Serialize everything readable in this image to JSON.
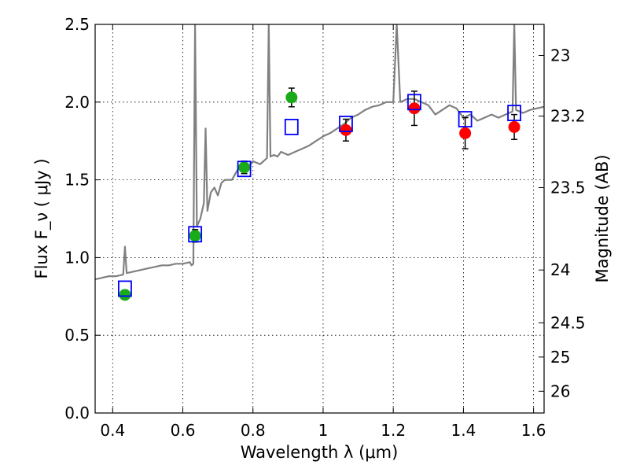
{
  "chart_data": {
    "type": "scatter",
    "title": "",
    "xlabel": "Wavelength  λ (μm)",
    "ylabel": "Flux  F_ν  ( μJy )",
    "ylabel_right": "Magnitude (AB)",
    "xlim": [
      0.35,
      1.63
    ],
    "ylim": [
      0.0,
      2.5
    ],
    "grid": true,
    "x_ticks": [
      0.4,
      0.6,
      0.8,
      1.0,
      1.2,
      1.4,
      1.6
    ],
    "x_tick_labels": [
      "0.4",
      "0.6",
      "0.8",
      "1",
      "1.2",
      "1.4",
      "1.6"
    ],
    "y_ticks": [
      0.0,
      0.5,
      1.0,
      1.5,
      2.0,
      2.5
    ],
    "y_tick_labels": [
      "0.0",
      "0.5",
      "1.0",
      "1.5",
      "2.0",
      "2.5"
    ],
    "right_ticks": [
      {
        "label": "23",
        "flux": 2.3
      },
      {
        "label": "23.2",
        "flux": 1.91
      },
      {
        "label": "23.5",
        "flux": 1.45
      },
      {
        "label": "24",
        "flux": 0.92
      },
      {
        "label": "24.5",
        "flux": 0.58
      },
      {
        "label": "25",
        "flux": 0.36
      },
      {
        "label": "26",
        "flux": 0.14
      }
    ],
    "series": [
      {
        "name": "model spectrum",
        "kind": "line",
        "color": "#808080",
        "points": [
          [
            0.35,
            0.86
          ],
          [
            0.37,
            0.87
          ],
          [
            0.39,
            0.88
          ],
          [
            0.41,
            0.88
          ],
          [
            0.43,
            0.89
          ],
          [
            0.435,
            1.07
          ],
          [
            0.44,
            0.9
          ],
          [
            0.46,
            0.91
          ],
          [
            0.48,
            0.92
          ],
          [
            0.5,
            0.93
          ],
          [
            0.52,
            0.94
          ],
          [
            0.54,
            0.95
          ],
          [
            0.56,
            0.95
          ],
          [
            0.58,
            0.96
          ],
          [
            0.6,
            0.96
          ],
          [
            0.62,
            0.97
          ],
          [
            0.625,
            0.95
          ],
          [
            0.63,
            0.96
          ],
          [
            0.635,
            2.5
          ],
          [
            0.64,
            1.2
          ],
          [
            0.65,
            1.25
          ],
          [
            0.66,
            1.35
          ],
          [
            0.665,
            1.83
          ],
          [
            0.67,
            1.3
          ],
          [
            0.68,
            1.42
          ],
          [
            0.69,
            1.45
          ],
          [
            0.7,
            1.4
          ],
          [
            0.71,
            1.48
          ],
          [
            0.72,
            1.5
          ],
          [
            0.74,
            1.5
          ],
          [
            0.76,
            1.58
          ],
          [
            0.78,
            1.56
          ],
          [
            0.8,
            1.62
          ],
          [
            0.82,
            1.6
          ],
          [
            0.84,
            1.64
          ],
          [
            0.845,
            2.5
          ],
          [
            0.85,
            1.65
          ],
          [
            0.86,
            1.66
          ],
          [
            0.87,
            1.65
          ],
          [
            0.88,
            1.68
          ],
          [
            0.9,
            1.66
          ],
          [
            0.92,
            1.68
          ],
          [
            0.94,
            1.7
          ],
          [
            0.96,
            1.72
          ],
          [
            0.98,
            1.75
          ],
          [
            1.0,
            1.78
          ],
          [
            1.02,
            1.8
          ],
          [
            1.04,
            1.83
          ],
          [
            1.06,
            1.86
          ],
          [
            1.08,
            1.9
          ],
          [
            1.1,
            1.92
          ],
          [
            1.12,
            1.95
          ],
          [
            1.14,
            1.97
          ],
          [
            1.16,
            1.98
          ],
          [
            1.18,
            2.0
          ],
          [
            1.2,
            2.0
          ],
          [
            1.21,
            2.5
          ],
          [
            1.22,
            2.0
          ],
          [
            1.24,
            2.02
          ],
          [
            1.26,
            2.02
          ],
          [
            1.28,
            2.0
          ],
          [
            1.3,
            1.98
          ],
          [
            1.32,
            1.92
          ],
          [
            1.34,
            1.95
          ],
          [
            1.36,
            1.98
          ],
          [
            1.38,
            1.96
          ],
          [
            1.4,
            1.9
          ],
          [
            1.42,
            1.92
          ],
          [
            1.44,
            1.88
          ],
          [
            1.46,
            1.9
          ],
          [
            1.48,
            1.92
          ],
          [
            1.5,
            1.9
          ],
          [
            1.52,
            1.92
          ],
          [
            1.54,
            1.94
          ],
          [
            1.545,
            2.5
          ],
          [
            1.55,
            1.95
          ],
          [
            1.57,
            1.93
          ],
          [
            1.59,
            1.95
          ],
          [
            1.61,
            1.96
          ],
          [
            1.63,
            1.97
          ]
        ]
      },
      {
        "name": "green photometry",
        "kind": "points",
        "color": "#1aab1a",
        "points": [
          {
            "x": 0.435,
            "y": 0.76,
            "err": 0.03
          },
          {
            "x": 0.635,
            "y": 1.14,
            "err": 0.04
          },
          {
            "x": 0.775,
            "y": 1.58,
            "err": 0.04
          },
          {
            "x": 0.91,
            "y": 2.03,
            "err": 0.06
          }
        ]
      },
      {
        "name": "red photometry",
        "kind": "points",
        "color": "#ff0000",
        "points": [
          {
            "x": 1.065,
            "y": 1.82,
            "err": 0.07
          },
          {
            "x": 1.26,
            "y": 1.96,
            "err": 0.11
          },
          {
            "x": 1.405,
            "y": 1.8,
            "err": 0.1
          },
          {
            "x": 1.545,
            "y": 1.84,
            "err": 0.08
          }
        ]
      },
      {
        "name": "model photometry",
        "kind": "squares",
        "color": "#0000ff",
        "points": [
          {
            "x": 0.435,
            "y": 0.8
          },
          {
            "x": 0.635,
            "y": 1.15
          },
          {
            "x": 0.775,
            "y": 1.57
          },
          {
            "x": 0.91,
            "y": 1.84
          },
          {
            "x": 1.065,
            "y": 1.86
          },
          {
            "x": 1.26,
            "y": 2.0
          },
          {
            "x": 1.405,
            "y": 1.89
          },
          {
            "x": 1.545,
            "y": 1.93
          }
        ]
      }
    ]
  }
}
